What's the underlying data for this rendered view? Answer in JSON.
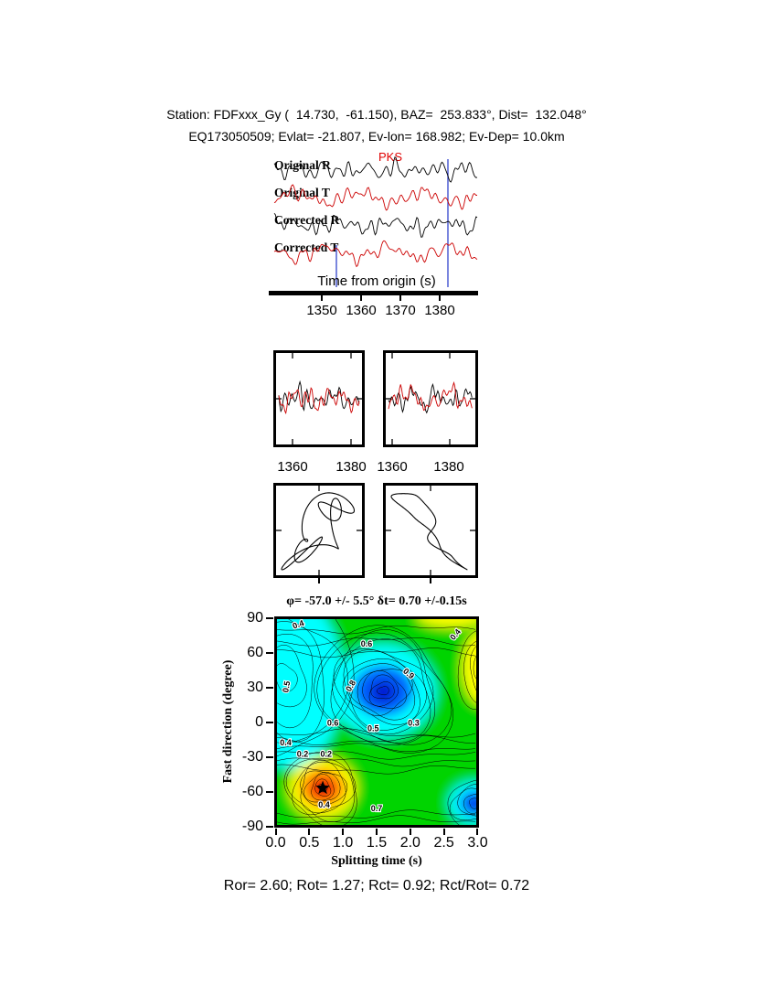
{
  "header": {
    "line1": "Station: FDFxxx_Gy (  14.730,  -61.150), BAZ=  253.833°, Dist=  132.048°",
    "line2": "EQ173050509; Evlat= -21.807, Ev-lon= 168.982; Ev-Dep= 10.0km"
  },
  "waveforms": {
    "phase_label": "PKS",
    "trace_labels": [
      "Original R",
      "Original T",
      "Corrected R",
      "Corrected T"
    ],
    "xlabel": "Time from origin (s)",
    "xticks": [
      "1350",
      "1360",
      "1370",
      "1380"
    ]
  },
  "windows": {
    "xticks": [
      "1360",
      "1380",
      "1360",
      "1380"
    ]
  },
  "contour": {
    "title": "φ= -57.0 +/- 5.5° δt= 0.70 +/-0.15s",
    "xlabel": "Splitting time (s)",
    "ylabel": "Fast direction (degree)",
    "xticks": [
      "0.0",
      "0.5",
      "1.0",
      "1.5",
      "2.0",
      "2.5",
      "3.0"
    ],
    "yticks": [
      "90",
      "60",
      "30",
      "0",
      "-30",
      "-60",
      "-90"
    ]
  },
  "footer": {
    "text": "Ror= 2.60; Rot= 1.27; Rct= 0.92; Rct/Rot= 0.72"
  },
  "chart_data": [
    {
      "type": "line",
      "panel": "waveform-traces",
      "traces": [
        "Original R",
        "Original T",
        "Corrected R",
        "Corrected T"
      ],
      "phase": "PKS",
      "xlabel": "Time from origin (s)",
      "xticks": [
        1350,
        1360,
        1370,
        1380
      ],
      "window_marks_s": [
        1353.5,
        1382.0
      ]
    },
    {
      "type": "line",
      "panel": "windowed-waveforms-overlay",
      "xticks": [
        1360,
        1380
      ],
      "series": [
        "R (black)",
        "T (red)"
      ]
    },
    {
      "type": "scatter",
      "panel": "particle-motion",
      "boxes": [
        "original",
        "corrected"
      ]
    },
    {
      "type": "heatmap",
      "panel": "splitting-error-surface",
      "title": "φ= -57.0 +/- 5.5° δt= 0.70 +/-0.15s",
      "xlabel": "Splitting time (s)",
      "ylabel": "Fast direction (degree)",
      "xlim": [
        0.0,
        3.0
      ],
      "ylim": [
        -90,
        90
      ],
      "xticks": [
        0.0,
        0.5,
        1.0,
        1.5,
        2.0,
        2.5,
        3.0
      ],
      "yticks": [
        90,
        60,
        30,
        0,
        -30,
        -60,
        -90
      ],
      "best_solution": {
        "splitting_time_s": 0.7,
        "splitting_time_err_s": 0.15,
        "fast_direction_deg": -57.0,
        "fast_direction_err_deg": 5.5,
        "marker": "star"
      },
      "results": {
        "Ror": 2.6,
        "Rot": 1.27,
        "Rct": 0.92,
        "Rct_over_Rot": 0.72
      },
      "contour_levels_labeled": [
        0.2,
        0.3,
        0.4,
        0.5,
        0.6,
        0.7,
        0.8,
        0.9
      ],
      "colors": {
        "background": "#00d400",
        "cyan": "#00ffff",
        "blue": "#0064ff",
        "deep_blue": "#0014d2",
        "yellow": "#ffff00",
        "orange": "#ff9600",
        "red": "#ff0f00",
        "deep_red": "#c00000",
        "trace_red": "#cc0000",
        "window_line_blue": "#3344cc"
      },
      "field_features": [
        {
          "dt": 0.2,
          "phi": 35,
          "rdt": 0.8,
          "rphi": 75,
          "color": "cyan"
        },
        {
          "dt": 1.6,
          "phi": 27,
          "rdt": 0.78,
          "rphi": 40,
          "color": "cyan"
        },
        {
          "dt": 1.6,
          "phi": 27,
          "rdt": 0.45,
          "rphi": 22,
          "color": "blue"
        },
        {
          "dt": 1.6,
          "phi": 26,
          "rdt": 0.2,
          "rphi": 10,
          "color": "deep_blue"
        },
        {
          "dt": 3.1,
          "phi": 47,
          "rdt": 0.32,
          "rphi": 33,
          "color": "yellow"
        },
        {
          "dt": 2.6,
          "phi": 92,
          "rdt": 0.5,
          "rphi": 10,
          "color": "yellow"
        },
        {
          "dt": 0.7,
          "phi": -57,
          "rdt": 0.5,
          "rphi": 26,
          "color": "yellow"
        },
        {
          "dt": 0.7,
          "phi": -57,
          "rdt": 0.34,
          "rphi": 17,
          "color": "orange"
        },
        {
          "dt": 0.7,
          "phi": -57,
          "rdt": 0.2,
          "rphi": 10,
          "color": "red"
        },
        {
          "dt": 0.7,
          "phi": -57,
          "rdt": 0.09,
          "rphi": 4.5,
          "color": "deep_red"
        },
        {
          "dt": 2.95,
          "phi": -70,
          "rdt": 0.38,
          "rphi": 19,
          "color": "cyan"
        },
        {
          "dt": 2.95,
          "phi": -70,
          "rdt": 0.22,
          "rphi": 11,
          "color": "blue"
        },
        {
          "dt": 2.95,
          "phi": -72,
          "rdt": 0.1,
          "rphi": 5,
          "color": "deep_blue"
        }
      ],
      "rings": [
        {
          "dt": 1.6,
          "phi": 27,
          "n": 13,
          "rdt": 1.0,
          "rphi": 52,
          "seed": 11
        },
        {
          "dt": 0.7,
          "phi": -57,
          "n": 9,
          "rdt": 0.55,
          "rphi": 30,
          "seed": 22
        },
        {
          "dt": 2.95,
          "phi": -70,
          "n": 5,
          "rdt": 0.4,
          "rphi": 20,
          "seed": 33
        },
        {
          "dt": 3.1,
          "phi": 47,
          "n": 5,
          "rdt": 0.38,
          "rphi": 36,
          "seed": 44
        },
        {
          "dt": 0.15,
          "phi": 38,
          "n": 6,
          "rdt": 0.95,
          "rphi": 72,
          "seed": 55
        }
      ],
      "hlines_phi": [
        80,
        70,
        60,
        -10,
        -16,
        -22,
        -28,
        -34,
        -41,
        -80,
        -85
      ],
      "contour_label_points": [
        {
          "t": "0.4",
          "dt": 0.35,
          "phi": 82,
          "rot": -20
        },
        {
          "t": "0.5",
          "dt": 0.2,
          "phi": 30,
          "rot": -80
        },
        {
          "t": "0.6",
          "dt": 1.35,
          "phi": 65,
          "rot": 0
        },
        {
          "t": "0.9",
          "dt": 1.95,
          "phi": 40,
          "rot": 40
        },
        {
          "t": "0.8",
          "dt": 1.15,
          "phi": 30,
          "rot": -60
        },
        {
          "t": "0.6",
          "dt": 0.85,
          "phi": -3,
          "rot": 0
        },
        {
          "t": "0.5",
          "dt": 1.45,
          "phi": -8,
          "rot": 0
        },
        {
          "t": "0.3",
          "dt": 2.05,
          "phi": -3,
          "rot": 0
        },
        {
          "t": "0.4",
          "dt": 0.15,
          "phi": -20,
          "rot": 0
        },
        {
          "t": "0.2",
          "dt": 0.4,
          "phi": -30,
          "rot": 0
        },
        {
          "t": "0.2",
          "dt": 0.75,
          "phi": -30,
          "rot": 0
        },
        {
          "t": "0.4",
          "dt": 2.7,
          "phi": 74,
          "rot": -50
        },
        {
          "t": "0.4",
          "dt": 0.72,
          "phi": -74,
          "rot": 0
        },
        {
          "t": "0.7",
          "dt": 1.5,
          "phi": -77,
          "rot": 0
        }
      ]
    }
  ]
}
